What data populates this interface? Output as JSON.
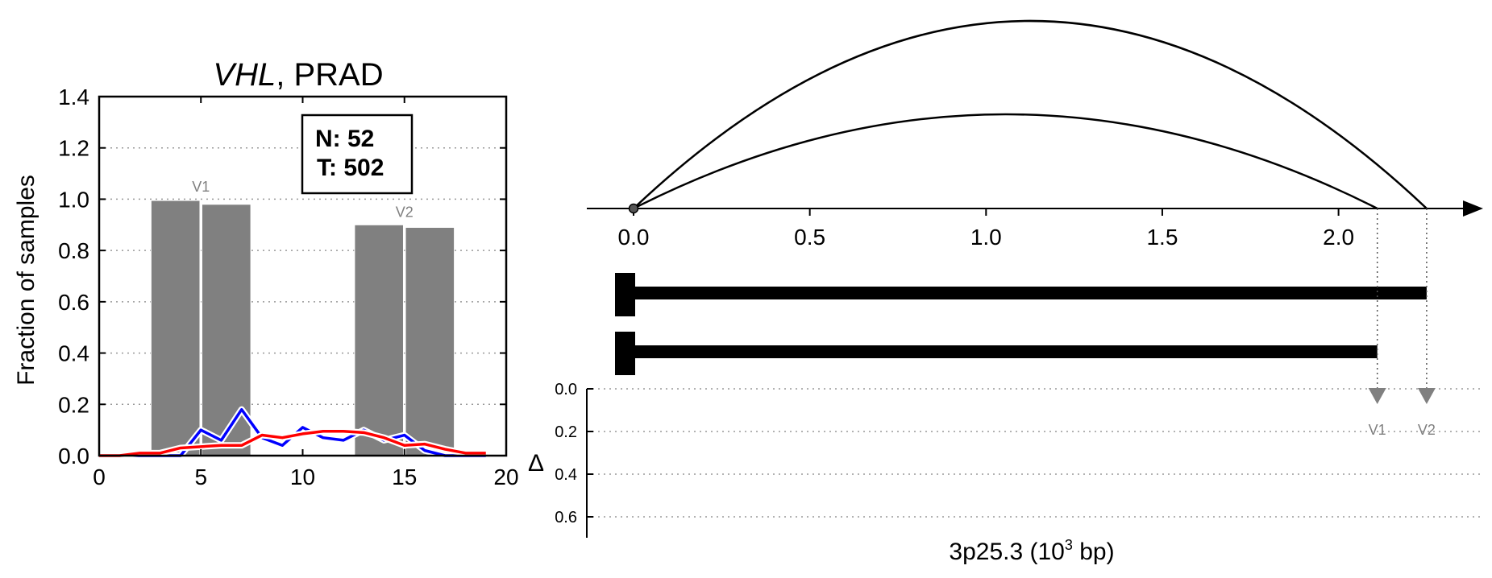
{
  "chart_data": [
    {
      "type": "bar",
      "title_gene": "VHL",
      "title_rest": ", PRAD",
      "xlabel": "",
      "ylabel": "Fraction of samples",
      "xlim": [
        0,
        20
      ],
      "ylim": [
        0,
        1.4
      ],
      "xticks": [
        "0",
        "5",
        "10",
        "15",
        "20"
      ],
      "xtick_values": [
        0,
        5,
        10,
        15,
        20
      ],
      "yticks": [
        "0.0",
        "0.2",
        "0.4",
        "0.6",
        "0.8",
        "1.0",
        "1.2",
        "1.4"
      ],
      "ytick_values": [
        0.0,
        0.2,
        0.4,
        0.6,
        0.8,
        1.0,
        1.2,
        1.4
      ],
      "grid": "horizontal dotted",
      "legend_box": {
        "normal": "N: 52",
        "tumor": "T: 502",
        "placement": "top-right"
      },
      "bars": [
        {
          "center": 3.75,
          "width": 2.4,
          "value": 0.995
        },
        {
          "center": 6.25,
          "width": 2.4,
          "value": 0.98
        },
        {
          "center": 13.75,
          "width": 2.4,
          "value": 0.9
        },
        {
          "center": 16.25,
          "width": 2.4,
          "value": 0.89
        }
      ],
      "bar_annotations": [
        {
          "text": "V1",
          "x": 5,
          "y": 1.03
        },
        {
          "text": "V2",
          "x": 15,
          "y": 0.93
        }
      ],
      "background_bars": [
        {
          "x0": 2.6,
          "x1": 7.4,
          "value": 0.01
        },
        {
          "x0": 12.6,
          "x1": 17.4,
          "value": 0.04
        }
      ],
      "series": [
        {
          "name": "",
          "color": "#0000ff",
          "x": [
            0,
            1,
            2,
            3,
            4,
            5,
            6,
            7,
            8,
            9,
            10,
            11,
            12,
            13,
            14,
            15,
            16,
            17,
            18,
            19
          ],
          "y": [
            0,
            0,
            0,
            0,
            0,
            0.1,
            0.06,
            0.18,
            0.07,
            0.04,
            0.11,
            0.07,
            0.06,
            0.1,
            0.06,
            0.08,
            0.02,
            0,
            0,
            0
          ]
        },
        {
          "name": "",
          "color": "#ff0000",
          "x": [
            0,
            1,
            2,
            3,
            4,
            5,
            6,
            7,
            8,
            9,
            10,
            11,
            12,
            13,
            14,
            15,
            16,
            17,
            18,
            19
          ],
          "y": [
            0,
            0,
            0.01,
            0.01,
            0.03,
            0.035,
            0.04,
            0.04,
            0.08,
            0.07,
            0.085,
            0.095,
            0.095,
            0.09,
            0.07,
            0.04,
            0.045,
            0.025,
            0.01,
            0.01
          ]
        }
      ]
    },
    {
      "type": "diagram",
      "xlabel_main": "3p25.3 (10",
      "xlabel_sup": "3",
      "xlabel_tail": " bp)",
      "xlim": [
        -0.13,
        2.4
      ],
      "xticks": [
        "0.0",
        "0.5",
        "1.0",
        "1.5",
        "2.0"
      ],
      "xtick_values": [
        0.0,
        0.5,
        1.0,
        1.5,
        2.0
      ],
      "origin": 0.0,
      "arcs": [
        {
          "start": 0.0,
          "end": 2.25,
          "height": 1.0
        },
        {
          "start": 0.0,
          "end": 2.11,
          "height": 0.5
        }
      ],
      "transcripts": [
        {
          "start": 0.0,
          "end": 2.25,
          "exon_end": 0.05
        },
        {
          "start": 0.0,
          "end": 2.11,
          "exon_end": 0.05
        }
      ],
      "markers": [
        {
          "text": "V1",
          "x": 2.11,
          "delta": 0.03
        },
        {
          "text": "V2",
          "x": 2.25,
          "delta": 0.03
        }
      ],
      "delta_label": "Δ",
      "delta_ylim": [
        0.0,
        0.7
      ],
      "delta_ticks": [
        "0.0",
        "0.2",
        "0.4",
        "0.6"
      ],
      "delta_tick_values": [
        0.0,
        0.2,
        0.4,
        0.6
      ],
      "marker_color": "#808080"
    }
  ]
}
